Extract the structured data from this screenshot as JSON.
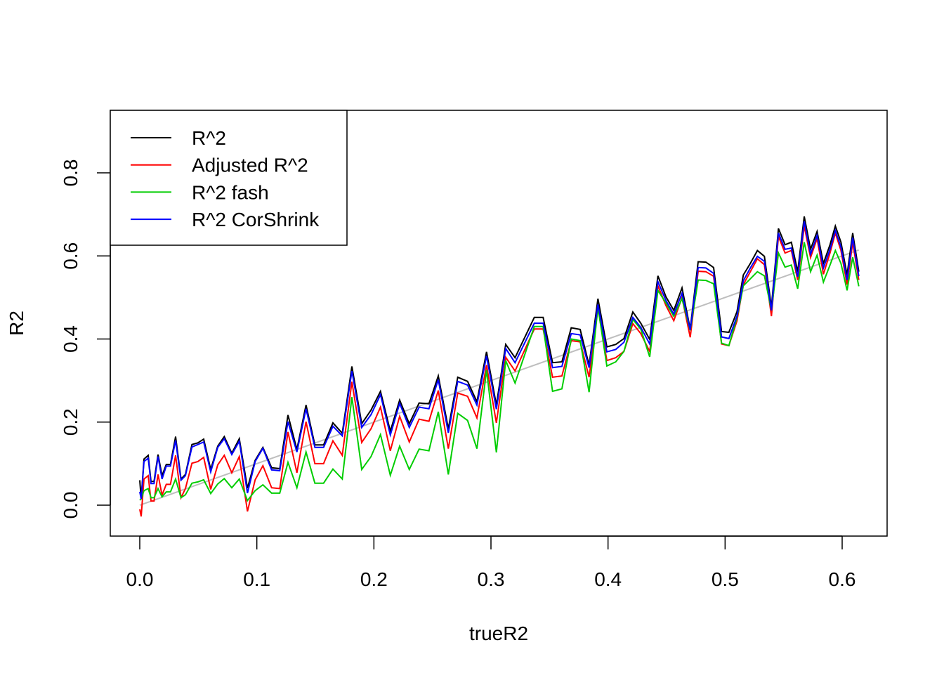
{
  "chart_data": {
    "type": "line",
    "title": "",
    "xlabel": "trueR2",
    "ylabel": "R2",
    "xlim": [
      -0.0252,
      0.6384
    ],
    "ylim": [
      -0.0744,
      0.9505
    ],
    "xticks": [
      0.0,
      0.1,
      0.2,
      0.3,
      0.4,
      0.5,
      0.6
    ],
    "xtick_labels": [
      "0.0",
      "0.1",
      "0.2",
      "0.3",
      "0.4",
      "0.5",
      "0.6"
    ],
    "yticks": [
      0.0,
      0.2,
      0.4,
      0.6,
      0.8
    ],
    "ytick_labels": [
      "0.0",
      "0.2",
      "0.4",
      "0.6",
      "0.8"
    ],
    "grid": false,
    "legend_position": "top-left",
    "x": [
      0.0,
      0.0012,
      0.0036,
      0.0072,
      0.0096,
      0.0122,
      0.0156,
      0.019,
      0.0226,
      0.0262,
      0.0306,
      0.0352,
      0.039,
      0.0446,
      0.0496,
      0.0546,
      0.0606,
      0.0666,
      0.0722,
      0.0786,
      0.085,
      0.092,
      0.0986,
      0.1052,
      0.1126,
      0.1196,
      0.1266,
      0.1342,
      0.142,
      0.1496,
      0.157,
      0.165,
      0.173,
      0.1812,
      0.1896,
      0.1976,
      0.2056,
      0.214,
      0.222,
      0.2302,
      0.2386,
      0.247,
      0.255,
      0.2636,
      0.2716,
      0.28,
      0.288,
      0.2962,
      0.3046,
      0.3126,
      0.3206,
      0.337,
      0.3446,
      0.3526,
      0.3606,
      0.3686,
      0.3762,
      0.3838,
      0.3914,
      0.399,
      0.4066,
      0.4136,
      0.4212,
      0.428,
      0.4356,
      0.4426,
      0.4496,
      0.4562,
      0.4632,
      0.4702,
      0.477,
      0.4836,
      0.4902,
      0.497,
      0.5032,
      0.5102,
      0.5156,
      0.5216,
      0.5276,
      0.5336,
      0.5396,
      0.5456,
      0.5512,
      0.5566,
      0.562,
      0.5676,
      0.573,
      0.5786,
      0.584,
      0.5896,
      0.5942,
      0.599,
      0.6042,
      0.609,
      0.6142
    ],
    "series": [
      {
        "name": "R^2",
        "color": "#000000",
        "values": [
          0.06,
          0.015,
          0.111,
          0.12,
          0.057,
          0.057,
          0.122,
          0.071,
          0.098,
          0.098,
          0.165,
          0.063,
          0.074,
          0.146,
          0.15,
          0.159,
          0.086,
          0.142,
          0.165,
          0.125,
          0.16,
          0.041,
          0.108,
          0.139,
          0.09,
          0.088,
          0.217,
          0.134,
          0.241,
          0.145,
          0.145,
          0.198,
          0.173,
          0.334,
          0.196,
          0.229,
          0.274,
          0.178,
          0.253,
          0.196,
          0.246,
          0.244,
          0.311,
          0.184,
          0.308,
          0.298,
          0.249,
          0.369,
          0.241,
          0.387,
          0.355,
          0.452,
          0.452,
          0.343,
          0.345,
          0.427,
          0.423,
          0.337,
          0.497,
          0.381,
          0.387,
          0.401,
          0.465,
          0.438,
          0.399,
          0.552,
          0.501,
          0.469,
          0.523,
          0.424,
          0.586,
          0.585,
          0.572,
          0.418,
          0.416,
          0.466,
          0.554,
          0.582,
          0.613,
          0.599,
          0.477,
          0.666,
          0.627,
          0.633,
          0.562,
          0.695,
          0.616,
          0.659,
          0.582,
          0.627,
          0.672,
          0.633,
          0.554,
          0.655,
          0.562
        ]
      },
      {
        "name": "Adjusted R^2",
        "color": "#ff0000",
        "values": [
          -0.01,
          -0.027,
          0.063,
          0.071,
          0.01,
          0.01,
          0.074,
          0.024,
          0.05,
          0.05,
          0.12,
          0.018,
          0.04,
          0.101,
          0.105,
          0.115,
          0.038,
          0.097,
          0.12,
          0.078,
          0.117,
          -0.015,
          0.061,
          0.095,
          0.042,
          0.04,
          0.176,
          0.078,
          0.201,
          0.1,
          0.1,
          0.155,
          0.12,
          0.297,
          0.151,
          0.184,
          0.236,
          0.131,
          0.214,
          0.152,
          0.207,
          0.202,
          0.276,
          0.136,
          0.27,
          0.262,
          0.21,
          0.337,
          0.198,
          0.356,
          0.323,
          0.424,
          0.424,
          0.308,
          0.311,
          0.396,
          0.393,
          0.308,
          0.475,
          0.348,
          0.355,
          0.37,
          0.437,
          0.413,
          0.37,
          0.528,
          0.48,
          0.444,
          0.5,
          0.404,
          0.563,
          0.562,
          0.551,
          0.388,
          0.384,
          0.444,
          0.531,
          0.562,
          0.593,
          0.579,
          0.455,
          0.647,
          0.607,
          0.613,
          0.542,
          0.672,
          0.596,
          0.642,
          0.556,
          0.607,
          0.655,
          0.613,
          0.531,
          0.633,
          0.542
        ]
      },
      {
        "name": "R^2 fash",
        "color": "#00cd00",
        "values": [
          0.012,
          0.015,
          0.035,
          0.04,
          0.018,
          0.018,
          0.04,
          0.02,
          0.032,
          0.032,
          0.063,
          0.018,
          0.025,
          0.053,
          0.056,
          0.061,
          0.028,
          0.051,
          0.064,
          0.042,
          0.063,
          0.011,
          0.035,
          0.049,
          0.029,
          0.029,
          0.103,
          0.042,
          0.128,
          0.053,
          0.053,
          0.087,
          0.063,
          0.26,
          0.086,
          0.117,
          0.17,
          0.072,
          0.142,
          0.086,
          0.135,
          0.131,
          0.225,
          0.074,
          0.221,
          0.204,
          0.136,
          0.325,
          0.127,
          0.348,
          0.294,
          0.43,
          0.43,
          0.274,
          0.28,
          0.4,
          0.396,
          0.272,
          0.477,
          0.335,
          0.345,
          0.37,
          0.447,
          0.424,
          0.357,
          0.517,
          0.486,
          0.455,
          0.497,
          0.421,
          0.542,
          0.541,
          0.533,
          0.39,
          0.384,
          0.452,
          0.528,
          0.545,
          0.562,
          0.552,
          0.469,
          0.607,
          0.573,
          0.578,
          0.521,
          0.633,
          0.562,
          0.602,
          0.537,
          0.578,
          0.613,
          0.582,
          0.517,
          0.597,
          0.527
        ]
      },
      {
        "name": "R^2 CorShrink",
        "color": "#0000ff",
        "values": [
          0.032,
          0.015,
          0.105,
          0.113,
          0.052,
          0.052,
          0.117,
          0.063,
          0.094,
          0.094,
          0.156,
          0.06,
          0.071,
          0.14,
          0.146,
          0.152,
          0.08,
          0.139,
          0.16,
          0.122,
          0.154,
          0.029,
          0.105,
          0.137,
          0.085,
          0.083,
          0.201,
          0.128,
          0.232,
          0.139,
          0.139,
          0.19,
          0.167,
          0.323,
          0.187,
          0.218,
          0.266,
          0.169,
          0.245,
          0.187,
          0.236,
          0.232,
          0.302,
          0.174,
          0.298,
          0.289,
          0.241,
          0.359,
          0.231,
          0.377,
          0.343,
          0.438,
          0.438,
          0.331,
          0.334,
          0.413,
          0.41,
          0.331,
          0.483,
          0.369,
          0.375,
          0.392,
          0.452,
          0.428,
          0.388,
          0.538,
          0.492,
          0.46,
          0.51,
          0.422,
          0.572,
          0.571,
          0.558,
          0.405,
          0.401,
          0.455,
          0.54,
          0.571,
          0.599,
          0.587,
          0.469,
          0.655,
          0.616,
          0.619,
          0.55,
          0.683,
          0.604,
          0.649,
          0.571,
          0.616,
          0.661,
          0.621,
          0.542,
          0.644,
          0.551
        ]
      }
    ],
    "reference_line": {
      "name": "y = x",
      "color": "#bebebe",
      "from": [
        0.0,
        0.0
      ],
      "to": [
        0.6142,
        0.6142
      ]
    },
    "legend": [
      "R^2",
      "Adjusted R^2",
      "R^2 fash",
      "R^2 CorShrink"
    ]
  }
}
